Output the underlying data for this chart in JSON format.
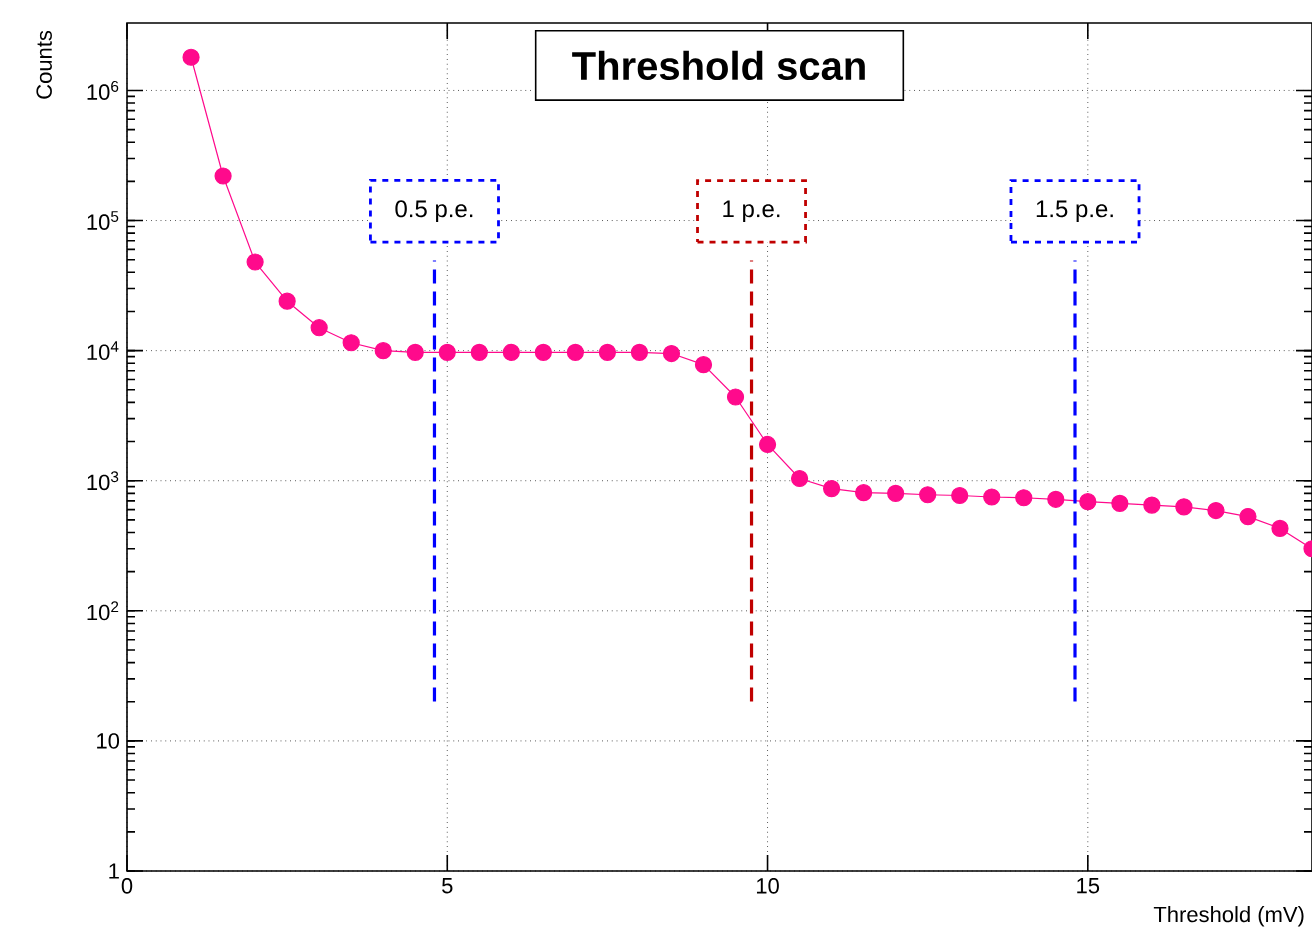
{
  "chart_data": {
    "type": "line",
    "title": "Threshold scan",
    "xlabel": "Threshold (mV)",
    "ylabel": "Counts",
    "x": [
      1,
      1.5,
      2,
      2.5,
      3,
      3.5,
      4,
      4.5,
      5,
      5.5,
      6,
      6.5,
      7,
      7.5,
      8,
      8.5,
      9,
      9.5,
      10,
      10.5,
      11,
      11.5,
      12,
      12.5,
      13,
      13.5,
      14,
      14.5,
      15,
      15.5,
      16,
      16.5,
      17,
      17.5,
      18,
      18.5
    ],
    "series": [
      {
        "color": "#ff0a8c",
        "values": [
          1800000,
          220000,
          48000,
          24000,
          15000,
          11500,
          10000,
          9700,
          9700,
          9700,
          9700,
          9700,
          9700,
          9700,
          9700,
          9500,
          7800,
          4400,
          1900,
          1040,
          870,
          810,
          800,
          780,
          770,
          750,
          740,
          720,
          690,
          670,
          650,
          630,
          590,
          530,
          430,
          300
        ]
      }
    ],
    "log": "y",
    "grid": true,
    "marker": "circle",
    "line_style": "solid",
    "xlim": [
      0,
      18.5
    ],
    "ylim": [
      1,
      3300000
    ],
    "xticks": [
      0,
      5,
      10,
      15
    ],
    "yticks": [
      1,
      10,
      {
        "value": 100,
        "label": "10$^{2}$"
      },
      {
        "value": 1000,
        "label": "10$^{3}$"
      },
      {
        "value": 10000,
        "label": "10$^{4}$"
      },
      {
        "value": 100000,
        "label": "10$^{5}$"
      },
      {
        "value": 1000000,
        "label": "10$^{6}$"
      }
    ],
    "ref_lines": [
      {
        "axis": "x",
        "value": 4.8,
        "label": "0.5 p.e.",
        "color": "#0000ff",
        "line_style": "dashed"
      },
      {
        "axis": "x",
        "value": 9.75,
        "label": "1 p.e.",
        "color": "#c00000",
        "line_style": "dashed"
      },
      {
        "axis": "x",
        "value": 14.8,
        "label": "1.5 p.e.",
        "color": "#0000ff",
        "line_style": "dashed"
      }
    ]
  }
}
